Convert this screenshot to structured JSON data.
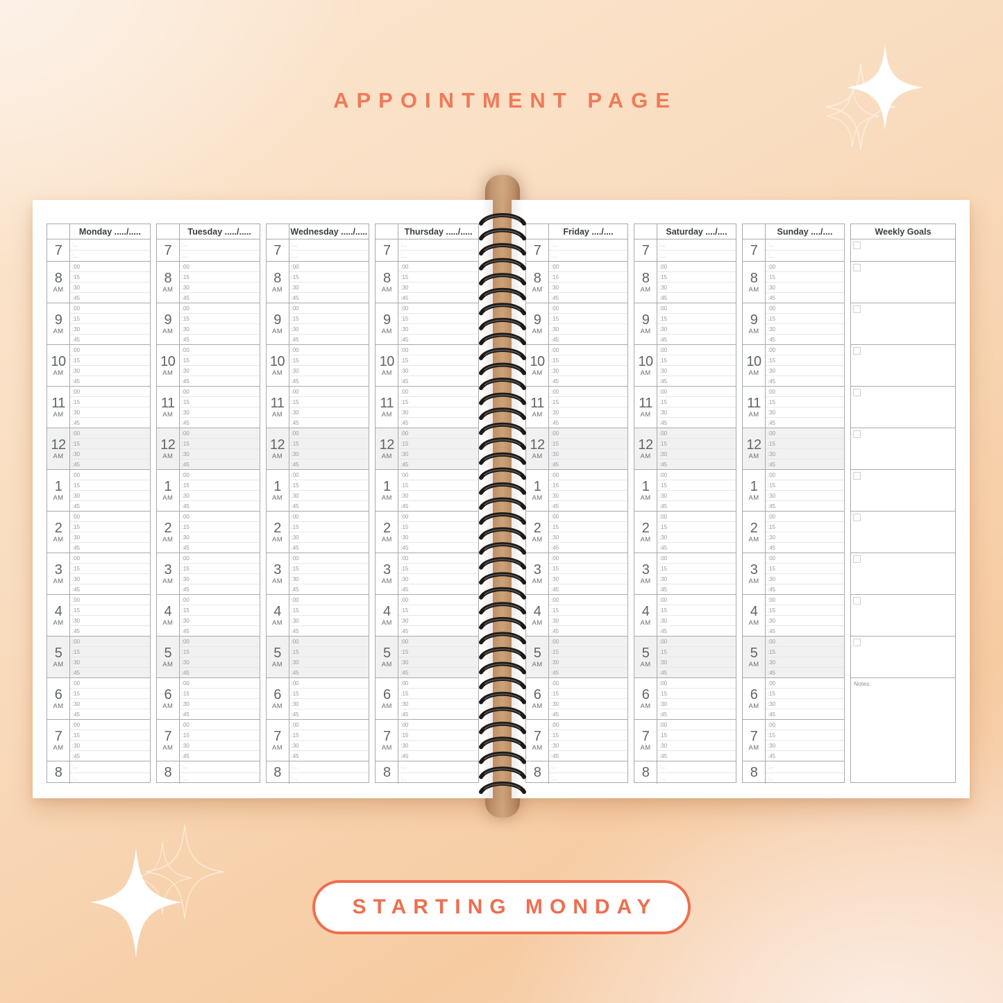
{
  "title": "APPOINTMENT PAGE",
  "footer_badge": "STARTING MONDAY",
  "colors": {
    "accent": "#EE7052",
    "spine": "#C59E79",
    "coil": "#1C1A18",
    "row_shade": "#F1F1F2",
    "border_dark": "#A6AAAC",
    "border_light": "#E5E7E8"
  },
  "planner": {
    "left_page_days": [
      "Monday ...../.....",
      "Tuesday ...../.....",
      "Wednesday ...../.....",
      "Thursday ...../....."
    ],
    "right_page_days": [
      "Friday ..../....",
      "Saturday ..../....",
      "Sunday ..../...."
    ],
    "weekly_goals_label": "Weekly Goals",
    "notes_label": "Notes:",
    "hours": [
      {
        "label": "7",
        "meridiem": "",
        "slots": [
          ":...",
          ":..."
        ],
        "shaded": false
      },
      {
        "label": "8",
        "meridiem": "AM",
        "slots": [
          ":00",
          ":15",
          ":30",
          ":45"
        ],
        "shaded": false
      },
      {
        "label": "9",
        "meridiem": "AM",
        "slots": [
          ":00",
          ":15",
          ":30",
          ":45"
        ],
        "shaded": false
      },
      {
        "label": "10",
        "meridiem": "AM",
        "slots": [
          ":00",
          ":15",
          ":30",
          ":45"
        ],
        "shaded": false
      },
      {
        "label": "11",
        "meridiem": "AM",
        "slots": [
          ":00",
          ":15",
          ":30",
          ":45"
        ],
        "shaded": false
      },
      {
        "label": "12",
        "meridiem": "AM",
        "slots": [
          ":00",
          ":15",
          ":30",
          ":45"
        ],
        "shaded": true
      },
      {
        "label": "1",
        "meridiem": "AM",
        "slots": [
          ":00",
          ":15",
          ":30",
          ":45"
        ],
        "shaded": false
      },
      {
        "label": "2",
        "meridiem": "AM",
        "slots": [
          ":00",
          ":15",
          ":30",
          ":45"
        ],
        "shaded": false
      },
      {
        "label": "3",
        "meridiem": "AM",
        "slots": [
          ":00",
          ":15",
          ":30",
          ":45"
        ],
        "shaded": false
      },
      {
        "label": "4",
        "meridiem": "AM",
        "slots": [
          ":00",
          ":15",
          ":30",
          ":45"
        ],
        "shaded": false
      },
      {
        "label": "5",
        "meridiem": "AM",
        "slots": [
          ":00",
          ":15",
          ":30",
          ":45"
        ],
        "shaded": true
      },
      {
        "label": "6",
        "meridiem": "AM",
        "slots": [
          ":00",
          ":15",
          ":30",
          ":45"
        ],
        "shaded": false
      },
      {
        "label": "7",
        "meridiem": "AM",
        "slots": [
          ":00",
          ":15",
          ":30",
          ":45"
        ],
        "shaded": false
      },
      {
        "label": "8",
        "meridiem": "",
        "slots": [
          ":...",
          ":..."
        ],
        "shaded": false
      }
    ],
    "goal_checkbox_count": 11
  }
}
